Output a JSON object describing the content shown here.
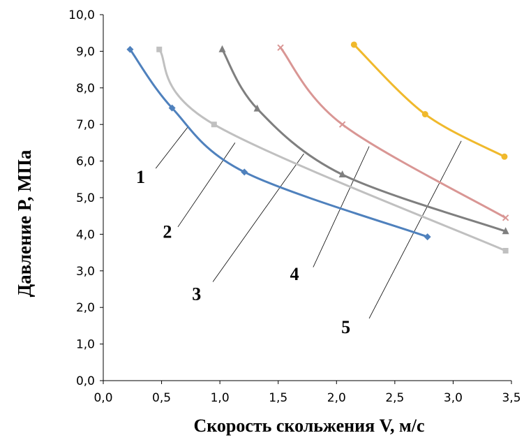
{
  "chart_data": {
    "type": "line",
    "xlabel": "Скорость скольжения V, м/с",
    "ylabel": "Давление P, МПа",
    "xlim": [
      0,
      3.5
    ],
    "ylim": [
      0,
      10
    ],
    "x_ticks": [
      "0,0",
      "0,5",
      "1,0",
      "1,5",
      "2,0",
      "2,5",
      "3,0",
      "3,5"
    ],
    "y_ticks": [
      "0,0",
      "1,0",
      "2,0",
      "3,0",
      "4,0",
      "5,0",
      "6,0",
      "7,0",
      "8,0",
      "9,0",
      "10,0"
    ],
    "grid": false,
    "series": [
      {
        "name": "1",
        "color": "#4f81bd",
        "marker": "diamond",
        "points": [
          [
            0.23,
            9.05
          ],
          [
            0.59,
            7.45
          ],
          [
            1.21,
            5.7
          ],
          [
            2.78,
            3.93
          ]
        ]
      },
      {
        "name": "2",
        "color": "#c0c0c0",
        "marker": "square",
        "points": [
          [
            0.48,
            9.05
          ],
          [
            0.95,
            7.0
          ],
          [
            3.45,
            3.55
          ]
        ]
      },
      {
        "name": "3",
        "color": "#7f7f7f",
        "marker": "triangle",
        "points": [
          [
            1.02,
            9.05
          ],
          [
            1.32,
            7.43
          ],
          [
            2.05,
            5.63
          ],
          [
            3.45,
            4.08
          ]
        ]
      },
      {
        "name": "4",
        "color": "#d99694",
        "marker": "x",
        "points": [
          [
            1.52,
            9.1
          ],
          [
            2.05,
            7.0
          ],
          [
            3.45,
            4.45
          ]
        ]
      },
      {
        "name": "5",
        "color": "#f0b92c",
        "marker": "circle",
        "points": [
          [
            2.15,
            9.18
          ],
          [
            2.76,
            7.28
          ],
          [
            3.44,
            6.12
          ]
        ]
      }
    ],
    "annotations": [
      {
        "text": "1",
        "label_at": [
          0.32,
          5.4
        ],
        "line_from": [
          0.45,
          5.8
        ],
        "line_to": [
          0.73,
          6.95
        ]
      },
      {
        "text": "2",
        "label_at": [
          0.55,
          3.9
        ],
        "line_from": [
          0.64,
          4.2
        ],
        "line_to": [
          1.13,
          6.5
        ]
      },
      {
        "text": "3",
        "label_at": [
          0.8,
          2.2
        ],
        "line_from": [
          0.94,
          2.7
        ],
        "line_to": [
          1.72,
          6.2
        ]
      },
      {
        "text": "4",
        "label_at": [
          1.64,
          2.75
        ],
        "line_from": [
          1.8,
          3.1
        ],
        "line_to": [
          2.28,
          6.4
        ]
      },
      {
        "text": "5",
        "label_at": [
          2.08,
          1.3
        ],
        "line_from": [
          2.28,
          1.7
        ],
        "line_to": [
          3.07,
          6.55
        ]
      }
    ]
  }
}
